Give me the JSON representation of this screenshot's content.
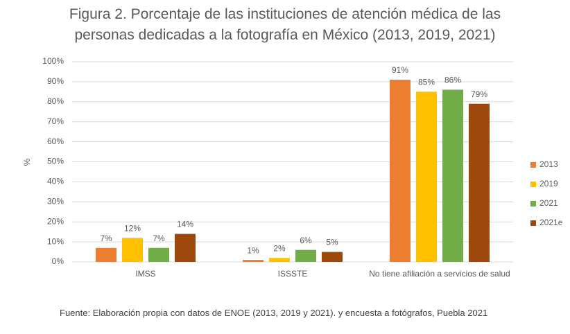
{
  "chart_data": {
    "type": "bar",
    "title": "Figura 2. Porcentaje de las instituciones de atención médica de las personas dedicadas a la fotografía en México (2013, 2019, 2021)",
    "y_label": "%",
    "categories": [
      "IMSS",
      "ISSSTE",
      "No tiene afiliación a servicios de salud"
    ],
    "series": [
      {
        "name": "2013",
        "color": "#ed7d31",
        "values": [
          7,
          1,
          91
        ],
        "value_labels": [
          "7%",
          "1%",
          "91%"
        ]
      },
      {
        "name": "2019",
        "color": "#ffc000",
        "values": [
          12,
          2,
          85
        ],
        "value_labels": [
          "12%",
          "2%",
          "85%"
        ]
      },
      {
        "name": "2021",
        "color": "#70ad47",
        "values": [
          7,
          6,
          86
        ],
        "value_labels": [
          "7%",
          "6%",
          "86%"
        ]
      },
      {
        "name": "2021e",
        "color": "#9e480e",
        "values": [
          14,
          5,
          79
        ],
        "value_labels": [
          "14%",
          "5%",
          "79%"
        ]
      }
    ],
    "ylim": [
      0,
      100
    ],
    "yticks": [
      {
        "value": 0,
        "label": "0%"
      },
      {
        "value": 10,
        "label": "10%"
      },
      {
        "value": 20,
        "label": "20%"
      },
      {
        "value": 30,
        "label": "30%"
      },
      {
        "value": 40,
        "label": "40%"
      },
      {
        "value": 50,
        "label": "50%"
      },
      {
        "value": 60,
        "label": "60%"
      },
      {
        "value": 70,
        "label": "70%"
      },
      {
        "value": 80,
        "label": "80%"
      },
      {
        "value": 90,
        "label": "90%"
      },
      {
        "value": 100,
        "label": "100%"
      }
    ],
    "grid": true,
    "legend": "right",
    "source": "Fuente:  Elaboración propia con datos de ENOE (2013, 2019 y 2021). y encuesta a fotógrafos, Puebla 2021"
  }
}
